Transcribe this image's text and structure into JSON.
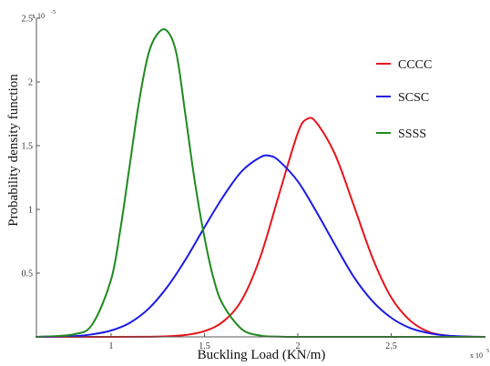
{
  "chart_data": {
    "type": "line",
    "title": "",
    "xlabel": "Buckling Load (KN/m)",
    "ylabel": "Probability density function",
    "x_multiplier_label": "x 10",
    "x_multiplier_exponent": "5",
    "y_multiplier_label": "x 10",
    "y_multiplier_exponent": "-5",
    "xlim": [
      0.6,
      3.0
    ],
    "ylim": [
      0,
      2.5
    ],
    "xticks": [
      1,
      1.5,
      2,
      2.5
    ],
    "xtick_labels": [
      "1",
      "1.5",
      "2",
      "2.5"
    ],
    "yticks": [
      0.5,
      1,
      1.5,
      2,
      2.5
    ],
    "ytick_labels": [
      "0.5",
      "1",
      "1.5",
      "2",
      "2.5"
    ],
    "grid": false,
    "legend_position": "top-right",
    "series": [
      {
        "name": "CCCC",
        "color": "#e8141b",
        "x": [
          0.6,
          1.0,
          1.2,
          1.3,
          1.4,
          1.5,
          1.6,
          1.7,
          1.8,
          1.9,
          2.0,
          2.05,
          2.1,
          2.2,
          2.3,
          2.4,
          2.5,
          2.6,
          2.7,
          2.8,
          2.9,
          3.0
        ],
        "values": [
          0,
          0,
          0.001,
          0.004,
          0.015,
          0.045,
          0.12,
          0.29,
          0.63,
          1.12,
          1.6,
          1.71,
          1.68,
          1.43,
          1.03,
          0.62,
          0.31,
          0.13,
          0.04,
          0.01,
          0.002,
          0
        ]
      },
      {
        "name": "SCSC",
        "color": "#1a1ae6",
        "x": [
          0.6,
          0.8,
          0.9,
          1.0,
          1.1,
          1.2,
          1.3,
          1.4,
          1.5,
          1.6,
          1.7,
          1.8,
          1.85,
          1.9,
          2.0,
          2.1,
          2.2,
          2.3,
          2.4,
          2.5,
          2.6,
          2.7,
          2.8,
          2.9,
          3.0
        ],
        "values": [
          0,
          0.005,
          0.02,
          0.05,
          0.11,
          0.22,
          0.39,
          0.61,
          0.86,
          1.1,
          1.3,
          1.41,
          1.42,
          1.38,
          1.22,
          0.98,
          0.72,
          0.47,
          0.28,
          0.15,
          0.07,
          0.03,
          0.01,
          0.003,
          0
        ]
      },
      {
        "name": "SSSS",
        "color": "#1e8a1e",
        "x": [
          0.6,
          0.8,
          0.9,
          1.0,
          1.05,
          1.1,
          1.15,
          1.2,
          1.25,
          1.3,
          1.35,
          1.4,
          1.45,
          1.5,
          1.55,
          1.6,
          1.7,
          1.8,
          1.9,
          2.0,
          2.2,
          3.0
        ],
        "values": [
          0,
          0.02,
          0.1,
          0.45,
          0.85,
          1.35,
          1.85,
          2.22,
          2.38,
          2.4,
          2.22,
          1.72,
          1.2,
          0.78,
          0.45,
          0.25,
          0.06,
          0.01,
          0.002,
          0,
          0,
          0
        ]
      }
    ]
  }
}
